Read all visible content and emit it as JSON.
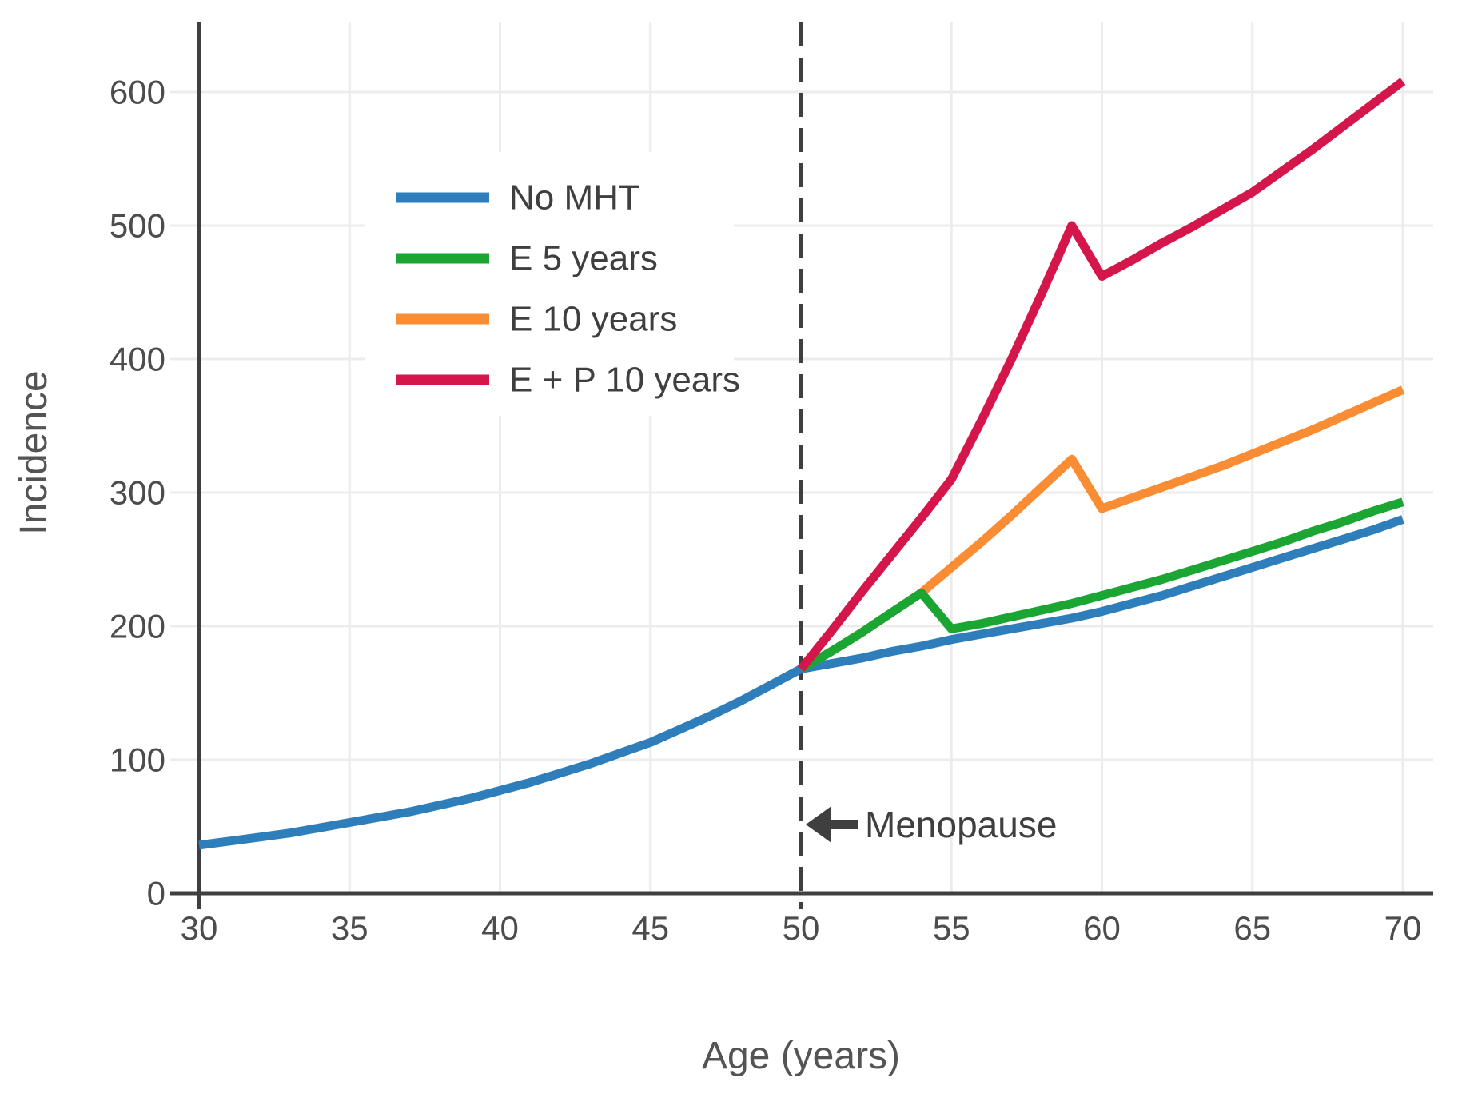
{
  "background": "#ffffff",
  "axis_style": {
    "text_color": "#4c4c4c",
    "spine_color": "#3f3f3f",
    "grid_color": "#ececec",
    "legend_text_color": "#3f3f3f"
  },
  "chart_data": {
    "type": "line",
    "title": "",
    "xlabel": "Age (years)",
    "ylabel": "Incidence",
    "xlim": [
      30,
      71
    ],
    "ylim": [
      0,
      652
    ],
    "xticks": [
      30,
      35,
      40,
      45,
      50,
      55,
      60,
      65,
      70
    ],
    "yticks": [
      0,
      100,
      200,
      300,
      400,
      500,
      600
    ],
    "grid": true,
    "legend_position": "upper-left-inside",
    "vline": {
      "x": 50,
      "style": "dashed",
      "color": "#3f3f3f"
    },
    "annotation": {
      "text": "Menopause",
      "arrow": "left",
      "points_to_x": 50,
      "y_value": 52
    },
    "draw_order": [
      0,
      2,
      1,
      3
    ],
    "series": [
      {
        "name": "No MHT",
        "color": "#2e7ebc",
        "x": [
          30,
          31,
          32,
          33,
          34,
          35,
          36,
          37,
          38,
          39,
          40,
          41,
          42,
          43,
          44,
          45,
          46,
          47,
          48,
          49,
          50,
          51,
          52,
          53,
          54,
          55,
          56,
          57,
          58,
          59,
          60,
          61,
          62,
          63,
          64,
          65,
          66,
          67,
          68,
          69,
          70
        ],
        "values": [
          36,
          39,
          42,
          45,
          49,
          53,
          57,
          61,
          66,
          71,
          77,
          83,
          90,
          97,
          105,
          113,
          123,
          133,
          144,
          156,
          168,
          172,
          176,
          181,
          185,
          190,
          194,
          198,
          202,
          206,
          211,
          217,
          223,
          230,
          237,
          244,
          251,
          258,
          265,
          272,
          280
        ]
      },
      {
        "name": "E 5 years",
        "color": "#1ba634",
        "x": [
          50,
          51,
          52,
          53,
          54,
          55,
          56,
          57,
          58,
          59,
          60,
          61,
          62,
          63,
          64,
          65,
          66,
          67,
          68,
          69,
          70
        ],
        "values": [
          168,
          181,
          195,
          210,
          225,
          198,
          202,
          207,
          212,
          217,
          223,
          229,
          235,
          242,
          249,
          256,
          263,
          271,
          278,
          286,
          293
        ]
      },
      {
        "name": "E 10 years",
        "color": "#fa8c33",
        "x": [
          50,
          51,
          52,
          53,
          54,
          55,
          56,
          57,
          58,
          59,
          60,
          61,
          62,
          63,
          64,
          65,
          66,
          67,
          68,
          69,
          70
        ],
        "values": [
          168,
          181,
          195,
          210,
          225,
          244,
          263,
          283,
          304,
          325,
          288,
          296,
          304,
          312,
          320,
          329,
          338,
          347,
          357,
          367,
          377
        ]
      },
      {
        "name": "E + P 10 years",
        "color": "#d4164a",
        "x": [
          50,
          51,
          52,
          53,
          54,
          55,
          56,
          57,
          58,
          59,
          60,
          61,
          62,
          63,
          64,
          65,
          66,
          67,
          68,
          69,
          70
        ],
        "values": [
          168,
          196,
          225,
          253,
          281,
          310,
          354,
          400,
          449,
          500,
          462,
          474,
          487,
          499,
          512,
          525,
          541,
          557,
          574,
          591,
          608
        ]
      }
    ]
  }
}
